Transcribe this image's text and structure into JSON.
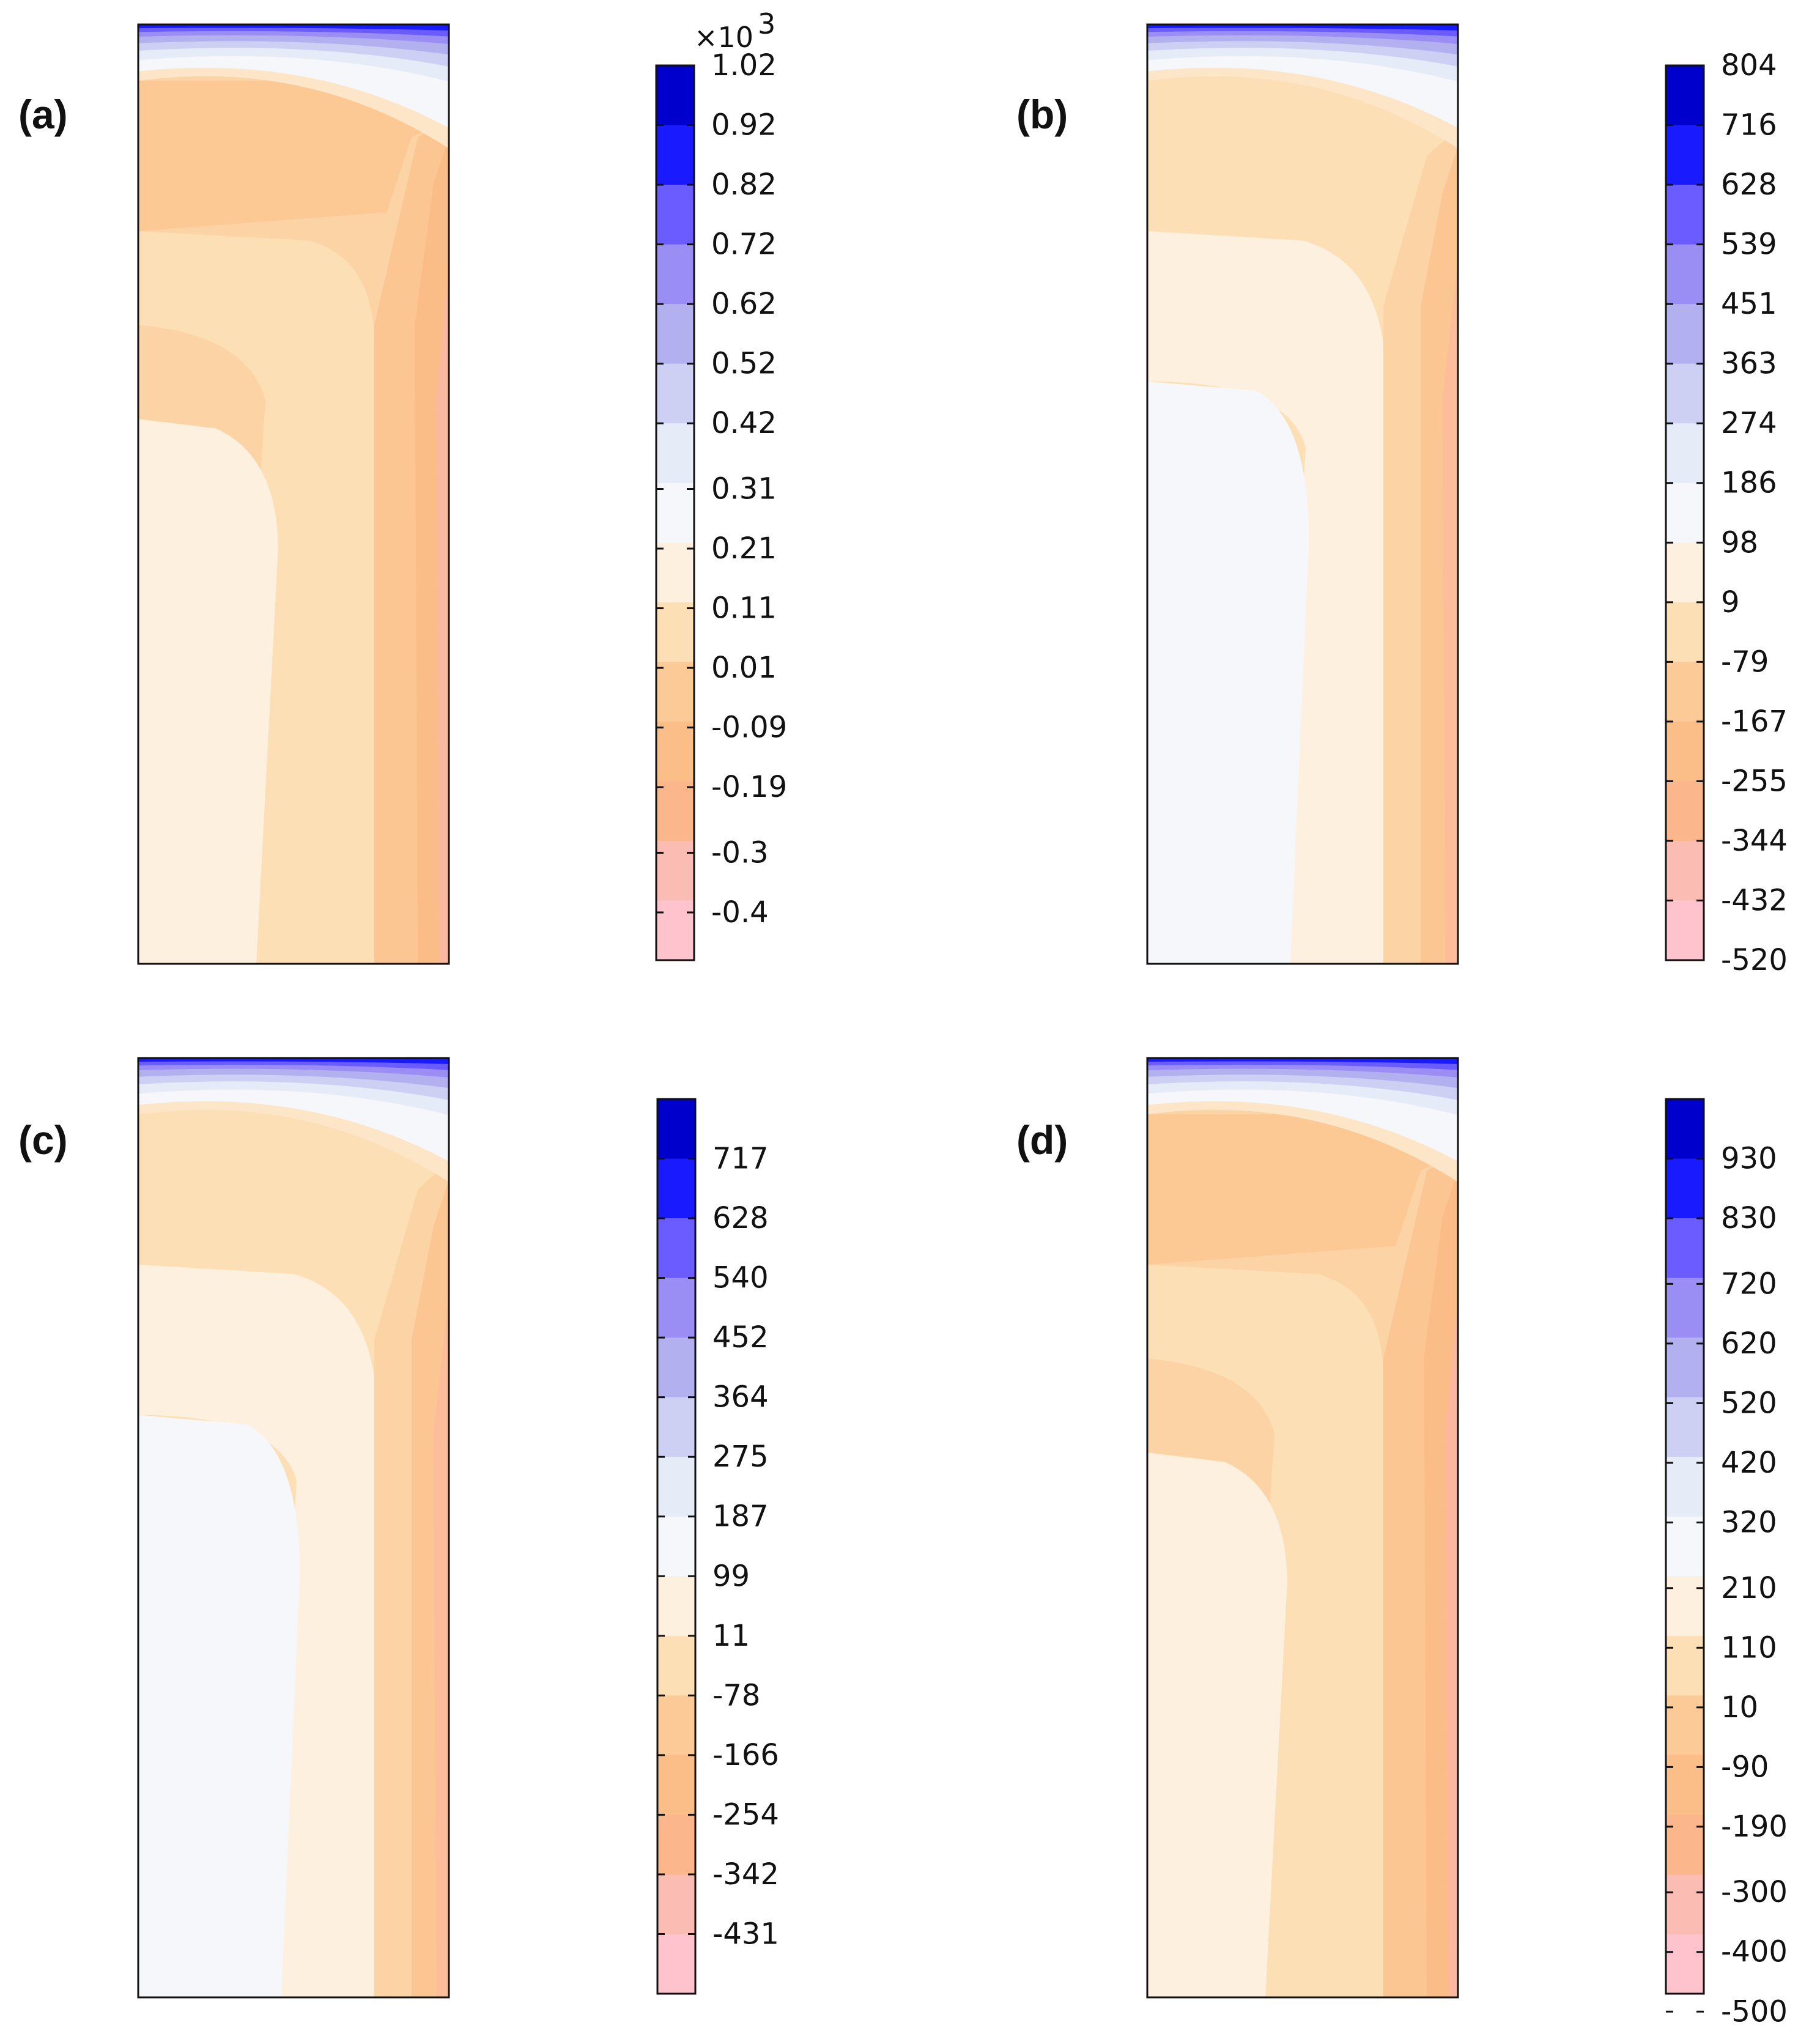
{
  "figure": {
    "panels": [
      {
        "label": "(a)",
        "multiplier": "×10",
        "multiplier_exp": "3",
        "tick_labels": [
          "1.02",
          "0.92",
          "0.82",
          "0.72",
          "0.62",
          "0.52",
          "0.42",
          "0.31",
          "0.21",
          "0.11",
          "0.01",
          "-0.09",
          "-0.19",
          "-0.3",
          "-0.4"
        ],
        "tick_level_positions": [
          0,
          1,
          2,
          3,
          4,
          5,
          6,
          7.1,
          8.1,
          9.1,
          10.1,
          11.1,
          12.1,
          13.2,
          14.2
        ],
        "levels": 15,
        "field_style": "a"
      },
      {
        "label": "(b)",
        "multiplier": "",
        "multiplier_exp": "",
        "tick_labels": [
          "804",
          "716",
          "628",
          "539",
          "451",
          "363",
          "274",
          "186",
          "98",
          "9",
          "-79",
          "-167",
          "-255",
          "-344",
          "-432",
          "-520"
        ],
        "tick_level_positions": [
          0,
          1,
          2,
          3,
          4,
          5,
          6,
          7,
          8,
          9,
          10,
          11,
          12,
          13,
          14,
          15
        ],
        "levels": 15,
        "field_style": "b"
      },
      {
        "label": "(c)",
        "multiplier": "",
        "multiplier_exp": "",
        "tick_labels": [
          "717",
          "628",
          "540",
          "452",
          "364",
          "275",
          "187",
          "99",
          "11",
          "-78",
          "-166",
          "-254",
          "-342",
          "-431"
        ],
        "tick_level_positions": [
          1,
          2,
          3,
          4,
          5,
          6,
          7,
          8,
          9,
          10,
          11,
          12,
          13,
          14
        ],
        "levels": 15,
        "field_style": "b"
      },
      {
        "label": "(d)",
        "multiplier": "",
        "multiplier_exp": "",
        "tick_labels": [
          "930",
          "830",
          "720",
          "620",
          "520",
          "420",
          "320",
          "210",
          "110",
          "10",
          "-90",
          "-190",
          "-300",
          "-400",
          "-500"
        ],
        "tick_level_positions": [
          1,
          2,
          3.1,
          4.1,
          5.1,
          6.1,
          7.1,
          8.2,
          9.2,
          10.2,
          11.2,
          12.2,
          13.3,
          14.3,
          15.3
        ],
        "levels": 15,
        "field_style": "a"
      }
    ],
    "colormap": [
      "#0000cc",
      "#1a1aff",
      "#6a5cff",
      "#9a8ef5",
      "#b3b0ef",
      "#cdd0f2",
      "#e6ebf8",
      "#f6f7fb",
      "#fef0df",
      "#fddfb6",
      "#fcca97",
      "#fcbe88",
      "#fbb68c",
      "#fbbcb4",
      "#ffc3cd"
    ]
  },
  "chart_data": [
    {
      "type": "heatmap",
      "title": "(a)",
      "colorbar_labels": [
        "1.02",
        "0.92",
        "0.82",
        "0.72",
        "0.62",
        "0.52",
        "0.42",
        "0.31",
        "0.21",
        "0.11",
        "0.01",
        "-0.09",
        "-0.19",
        "-0.3",
        "-0.4"
      ],
      "colorbar_multiplier": "×10^3",
      "range": [
        -0.4,
        1.02
      ],
      "xlabel": "",
      "ylabel": ""
    },
    {
      "type": "heatmap",
      "title": "(b)",
      "colorbar_labels": [
        "804",
        "716",
        "628",
        "539",
        "451",
        "363",
        "274",
        "186",
        "98",
        "9",
        "-79",
        "-167",
        "-255",
        "-344",
        "-432",
        "-520"
      ],
      "range": [
        -520,
        804
      ],
      "xlabel": "",
      "ylabel": ""
    },
    {
      "type": "heatmap",
      "title": "(c)",
      "colorbar_labels": [
        "717",
        "628",
        "540",
        "452",
        "364",
        "275",
        "187",
        "99",
        "11",
        "-78",
        "-166",
        "-254",
        "-342",
        "-431"
      ],
      "range": [
        -431,
        717
      ],
      "xlabel": "",
      "ylabel": ""
    },
    {
      "type": "heatmap",
      "title": "(d)",
      "colorbar_labels": [
        "930",
        "830",
        "720",
        "620",
        "520",
        "420",
        "320",
        "210",
        "110",
        "10",
        "-90",
        "-190",
        "-300",
        "-400",
        "-500"
      ],
      "range": [
        -500,
        930
      ],
      "xlabel": "",
      "ylabel": ""
    }
  ]
}
